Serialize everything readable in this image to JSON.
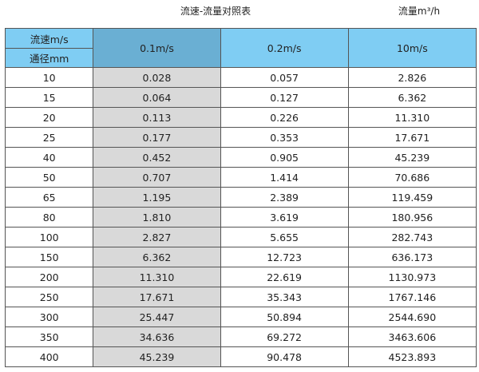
{
  "title": "流速-流量对照表",
  "unit_label": "流量m³/h",
  "header": {
    "velocity_label": "流速m/s",
    "diameter_label": "通径mm",
    "columns": [
      "0.1m/s",
      "0.2m/s",
      "10m/s"
    ]
  },
  "colors": {
    "header": "#7fcdf3",
    "header_selected": "#6aafd3",
    "first_data_column": "#d9d9d9"
  },
  "rows": [
    [
      "10",
      "0.028",
      "0.057",
      "2.826"
    ],
    [
      "15",
      "0.064",
      "0.127",
      "6.362"
    ],
    [
      "20",
      "0.113",
      "0.226",
      "11.310"
    ],
    [
      "25",
      "0.177",
      "0.353",
      "17.671"
    ],
    [
      "40",
      "0.452",
      "0.905",
      "45.239"
    ],
    [
      "50",
      "0.707",
      "1.414",
      "70.686"
    ],
    [
      "65",
      "1.195",
      "2.389",
      "119.459"
    ],
    [
      "80",
      "1.810",
      "3.619",
      "180.956"
    ],
    [
      "100",
      "2.827",
      "5.655",
      "282.743"
    ],
    [
      "150",
      "6.362",
      "12.723",
      "636.173"
    ],
    [
      "200",
      "11.310",
      "22.619",
      "1130.973"
    ],
    [
      "250",
      "17.671",
      "35.343",
      "1767.146"
    ],
    [
      "300",
      "25.447",
      "50.894",
      "2544.690"
    ],
    [
      "350",
      "34.636",
      "69.272",
      "3463.606"
    ],
    [
      "400",
      "45.239",
      "90.478",
      "4523.893"
    ]
  ]
}
